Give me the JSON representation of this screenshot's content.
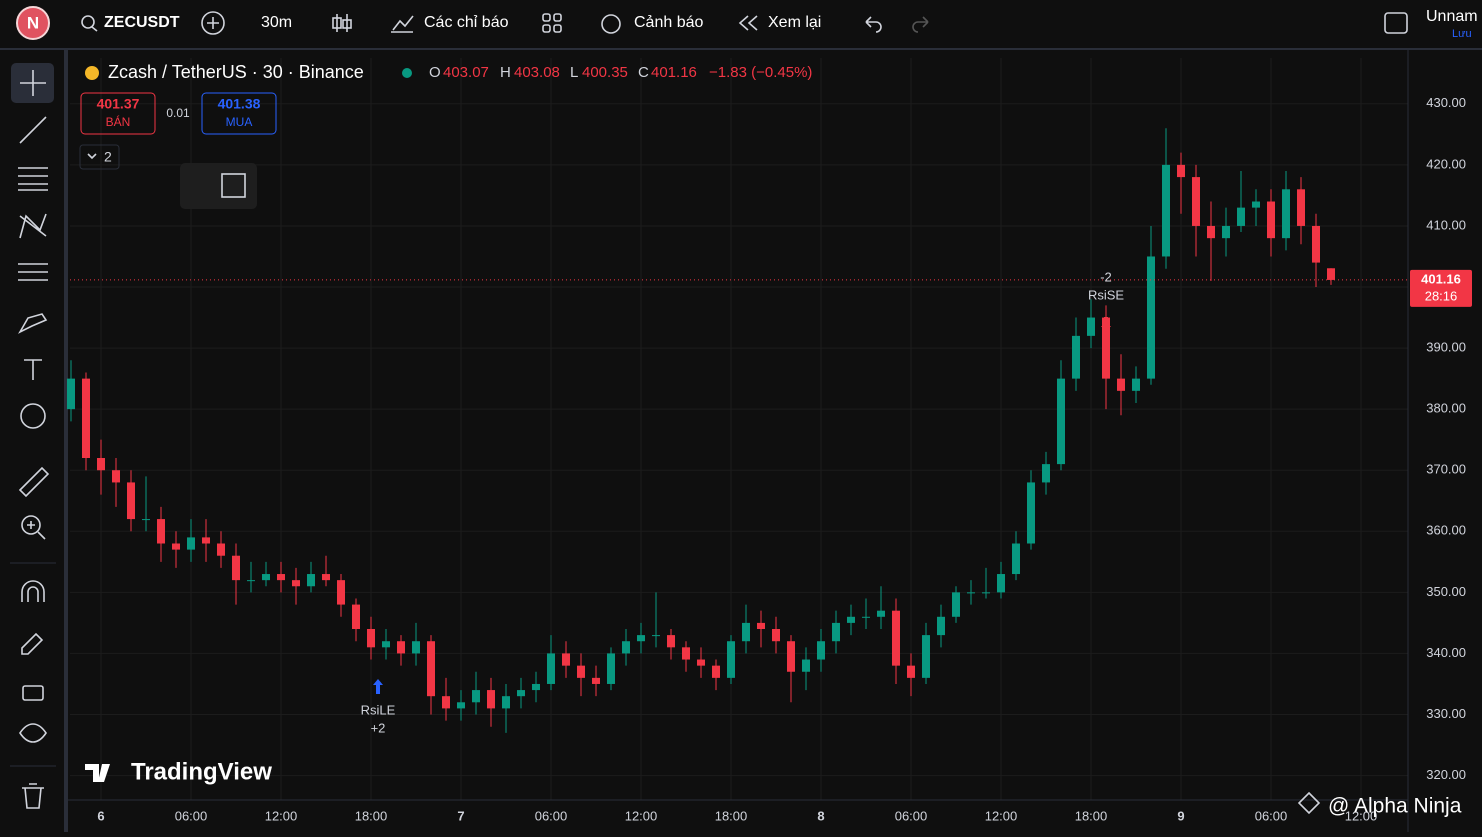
{
  "toolbar": {
    "avatar": "N",
    "symbol": "ZECUSDT",
    "interval": "30m",
    "indicators": "Các chỉ báo",
    "alerts": "Cảnh báo",
    "replay": "Xem lại",
    "layout_name": "Unnam",
    "save": "Lưu"
  },
  "legend": {
    "title": "Zcash / TetherUS · 30 · Binance",
    "o_label": "O",
    "o": "403.07",
    "h_label": "H",
    "h": "403.08",
    "l_label": "L",
    "l": "400.35",
    "c_label": "C",
    "c": "401.16",
    "change": "−1.83 (−0.45%)"
  },
  "trade": {
    "sell_price": "401.37",
    "sell": "BÁN",
    "spread": "0.01",
    "buy_price": "401.38",
    "buy": "MUA",
    "count": "2"
  },
  "chart_data": {
    "type": "candlestick",
    "up_color": "#089981",
    "down_color": "#f23645",
    "grid": true,
    "categories": [
      null,
      null,
      "6",
      null,
      null,
      null,
      null,
      null,
      "06:00",
      null,
      null,
      null,
      null,
      null,
      "12:00",
      null,
      null,
      null,
      null,
      null,
      "18:00",
      null,
      null,
      null,
      null,
      null,
      "7",
      null,
      null,
      null,
      null,
      null,
      "06:00",
      null,
      null,
      null,
      null,
      null,
      "12:00",
      null,
      null,
      null,
      null,
      null,
      "18:00",
      null,
      null,
      null,
      null,
      null,
      "8",
      null,
      null,
      null,
      null,
      null,
      "06:00",
      null,
      null,
      null,
      null,
      null,
      "12:00",
      null,
      null,
      null,
      null,
      null,
      "18:00",
      null,
      null,
      null,
      null,
      null,
      "9",
      null,
      null,
      null,
      null,
      null,
      "06:00",
      null,
      null,
      null,
      null,
      null,
      "12:00"
    ],
    "ohlc": [
      [
        380,
        388,
        378,
        385
      ],
      [
        385,
        386,
        370,
        372
      ],
      [
        372,
        375,
        366,
        370
      ],
      [
        370,
        372,
        364,
        368
      ],
      [
        368,
        370,
        360,
        362
      ],
      [
        362,
        369,
        360,
        362
      ],
      [
        362,
        364,
        355,
        358
      ],
      [
        358,
        360,
        354,
        357
      ],
      [
        357,
        362,
        355,
        359
      ],
      [
        359,
        362,
        355,
        358
      ],
      [
        358,
        360,
        354,
        356
      ],
      [
        356,
        358,
        348,
        352
      ],
      [
        352,
        355,
        350,
        352
      ],
      [
        352,
        355,
        351,
        353
      ],
      [
        353,
        355,
        350,
        352
      ],
      [
        352,
        354,
        348,
        351
      ],
      [
        351,
        355,
        350,
        353
      ],
      [
        353,
        356,
        351,
        352
      ],
      [
        352,
        353,
        346,
        348
      ],
      [
        348,
        349,
        342,
        344
      ],
      [
        344,
        346,
        339,
        341
      ],
      [
        341,
        344,
        339,
        342
      ],
      [
        342,
        343,
        338,
        340
      ],
      [
        340,
        345,
        338,
        342
      ],
      [
        342,
        343,
        330,
        333
      ],
      [
        333,
        336,
        329,
        331
      ],
      [
        331,
        334,
        329,
        332
      ],
      [
        332,
        337,
        330,
        334
      ],
      [
        334,
        336,
        328,
        331
      ],
      [
        331,
        335,
        327,
        333
      ],
      [
        333,
        336,
        331,
        334
      ],
      [
        334,
        337,
        332,
        335
      ],
      [
        335,
        343,
        334,
        340
      ],
      [
        340,
        342,
        336,
        338
      ],
      [
        338,
        340,
        333,
        336
      ],
      [
        336,
        338,
        333,
        335
      ],
      [
        335,
        341,
        334,
        340
      ],
      [
        340,
        344,
        338,
        342
      ],
      [
        342,
        345,
        340,
        343
      ],
      [
        343,
        350,
        341,
        343
      ],
      [
        343,
        344,
        339,
        341
      ],
      [
        341,
        342,
        337,
        339
      ],
      [
        339,
        341,
        336,
        338
      ],
      [
        338,
        339,
        334,
        336
      ],
      [
        336,
        343,
        335,
        342
      ],
      [
        342,
        348,
        340,
        345
      ],
      [
        345,
        347,
        341,
        344
      ],
      [
        344,
        346,
        340,
        342
      ],
      [
        342,
        343,
        332,
        337
      ],
      [
        337,
        341,
        334,
        339
      ],
      [
        339,
        344,
        337,
        342
      ],
      [
        342,
        347,
        340,
        345
      ],
      [
        345,
        348,
        343,
        346
      ],
      [
        346,
        349,
        344,
        346
      ],
      [
        346,
        351,
        344,
        347
      ],
      [
        347,
        349,
        335,
        338
      ],
      [
        338,
        340,
        333,
        336
      ],
      [
        336,
        345,
        335,
        343
      ],
      [
        343,
        348,
        341,
        346
      ],
      [
        346,
        351,
        345,
        350
      ],
      [
        350,
        352,
        348,
        350
      ],
      [
        350,
        354,
        349,
        350
      ],
      [
        350,
        355,
        349,
        353
      ],
      [
        353,
        360,
        352,
        358
      ],
      [
        358,
        370,
        357,
        368
      ],
      [
        368,
        373,
        366,
        371
      ],
      [
        371,
        388,
        370,
        385
      ],
      [
        385,
        395,
        383,
        392
      ],
      [
        392,
        398,
        390,
        395
      ],
      [
        395,
        397,
        380,
        385
      ],
      [
        385,
        389,
        379,
        383
      ],
      [
        383,
        387,
        381,
        385
      ],
      [
        385,
        410,
        384,
        405
      ],
      [
        405,
        426,
        403,
        420
      ],
      [
        420,
        422,
        412,
        418
      ],
      [
        418,
        420,
        405,
        410
      ],
      [
        410,
        414,
        401,
        408
      ],
      [
        408,
        413,
        405,
        410
      ],
      [
        410,
        419,
        409,
        413
      ],
      [
        413,
        416,
        410,
        414
      ],
      [
        414,
        416,
        405,
        408
      ],
      [
        408,
        419,
        406,
        416
      ],
      [
        416,
        418,
        407,
        410
      ],
      [
        410,
        412,
        400,
        404
      ],
      [
        403.07,
        403.08,
        400.35,
        401.16
      ],
      null,
      null
    ],
    "ylim": [
      316,
      437.5
    ],
    "yticks": [
      {
        "value": 430,
        "label": "430.00"
      },
      {
        "value": 420,
        "label": "420.00"
      },
      {
        "value": 410,
        "label": "410.00"
      },
      {
        "value": 400,
        "label": "400.00"
      },
      {
        "value": 390,
        "label": "390.00"
      },
      {
        "value": 380,
        "label": "380.00"
      },
      {
        "value": 370,
        "label": "370.00"
      },
      {
        "value": 360,
        "label": "360.00"
      },
      {
        "value": 350,
        "label": "350.00"
      },
      {
        "value": 340,
        "label": "340.00"
      },
      {
        "value": 330,
        "label": "330.00"
      },
      {
        "value": 320,
        "label": "320.00"
      }
    ],
    "last_price": 401.16,
    "countdown": "28:16",
    "signals": [
      {
        "name": "RsiLE",
        "qty": "+2"
      },
      {
        "name": "RsiSE",
        "qty": "-2"
      }
    ]
  },
  "watermark": "TradingView",
  "credit": "@ Alpha Ninja"
}
